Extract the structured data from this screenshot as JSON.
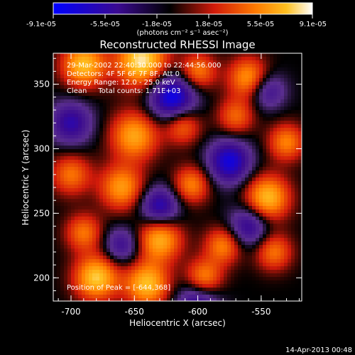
{
  "chart_data": {
    "type": "heatmap",
    "title": "Reconstructed RHESSI Image",
    "xlabel": "Heliocentric X (arcsec)",
    "ylabel": "Heliocentric Y (arcsec)",
    "xlim": [
      -714,
      -518
    ],
    "ylim": [
      182,
      374
    ],
    "x_ticks": [
      {
        "value": -700,
        "label": "-700"
      },
      {
        "value": -650,
        "label": "-650"
      },
      {
        "value": -600,
        "label": "-600"
      },
      {
        "value": -550,
        "label": "-550"
      }
    ],
    "y_ticks": [
      {
        "value": 200,
        "label": "200"
      },
      {
        "value": 250,
        "label": "250"
      },
      {
        "value": 300,
        "label": "300"
      },
      {
        "value": 350,
        "label": "350"
      }
    ],
    "colorbar": {
      "min": -9.1e-05,
      "max": 9.1e-05,
      "tick_labels": [
        "-9.1e-05",
        "-5.5e-05",
        "-1.8e-05",
        "1.8e-05",
        "5.5e-05",
        "9.1e-05"
      ],
      "unit_label": "(photons cm⁻² s⁻¹ asec⁻²)"
    },
    "annotations": [
      "29-Mar-2002 22:40:30.000 to 22:44:56.000",
      "Detectors: 4F 5F 6F 7F 8F, Att 0",
      "Energy Range: 12.0 - 25.0 keV",
      "Clean     Total counts: 1.71E+03"
    ],
    "peak_label": "Position of Peak = [-644,368]",
    "peak": [
      -644,
      368
    ],
    "grid": false,
    "colormap": [
      "#0000ff",
      "#3a0a90",
      "#5a2e8e",
      "#000000",
      "#d11a0a",
      "#ff7a00",
      "#ffc020",
      "#ffffff"
    ]
  },
  "footer": {
    "timestamp": "14-Apr-2013 00:48"
  }
}
